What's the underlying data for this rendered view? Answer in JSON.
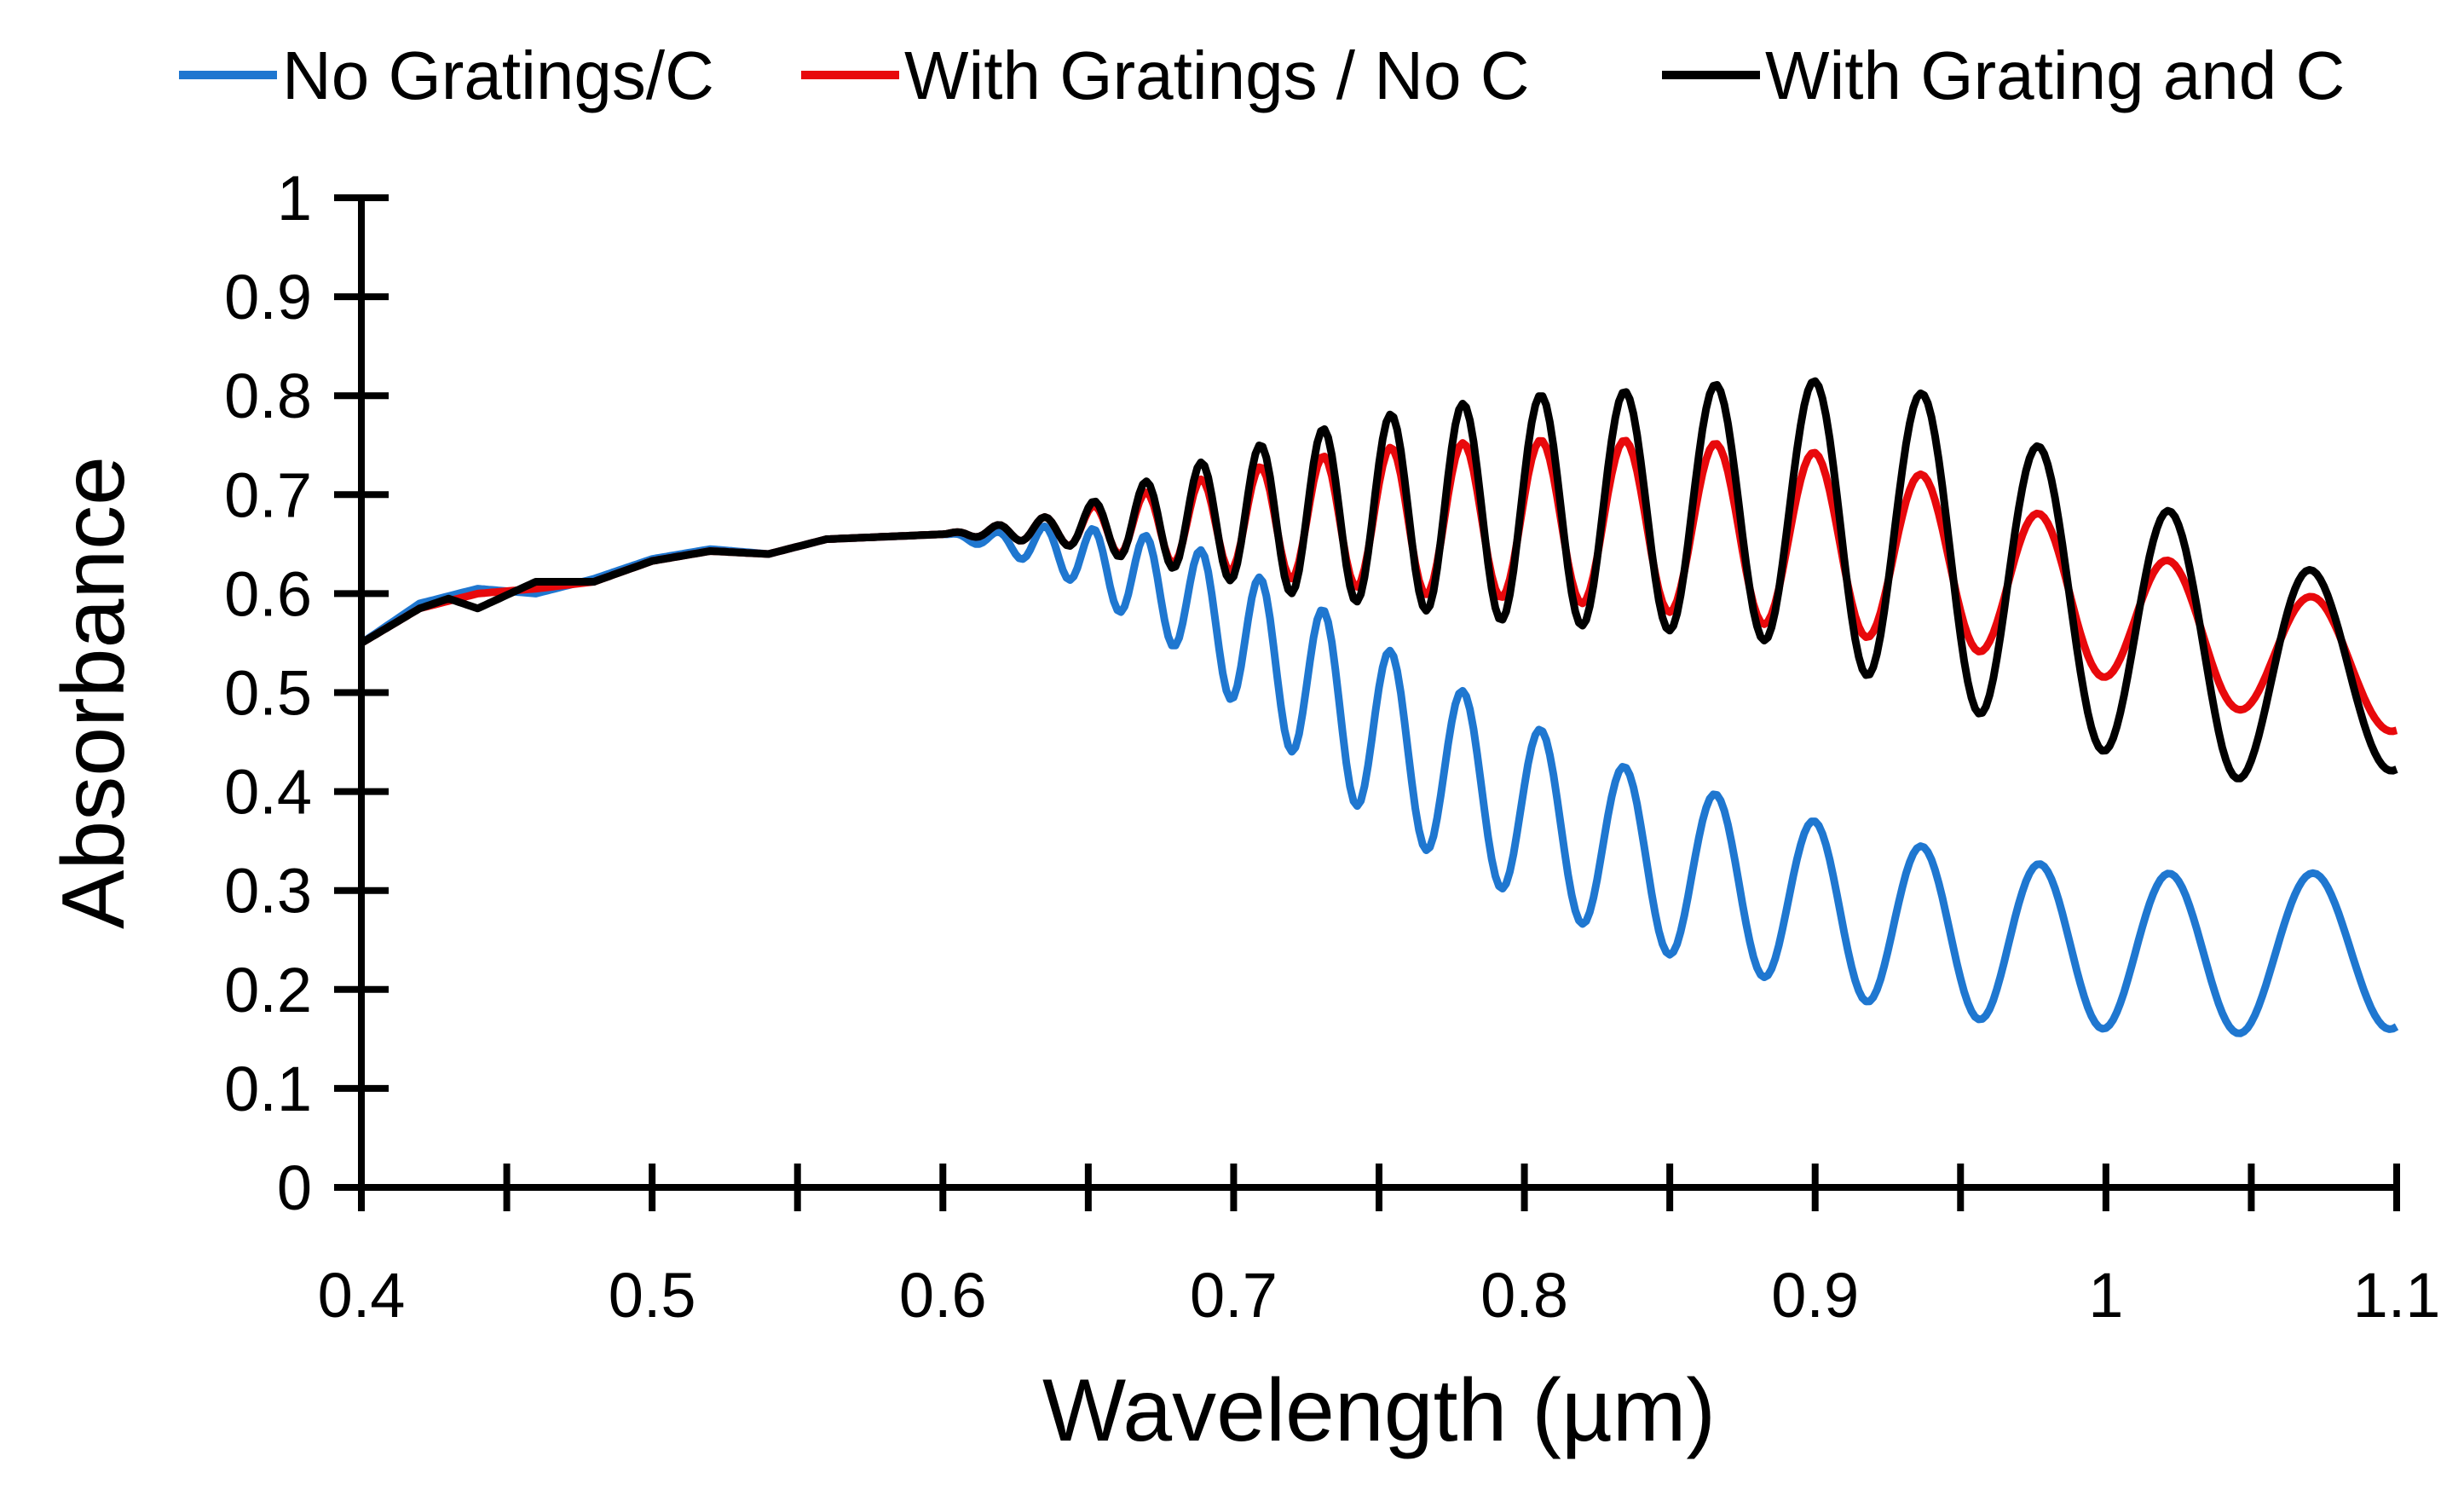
{
  "chart_data": {
    "type": "line",
    "title": "",
    "xlabel": "Wavelength (µm)",
    "ylabel": "Absorbance",
    "xlim": [
      0.4,
      1.1
    ],
    "ylim": [
      0,
      1
    ],
    "x_ticks": [
      0.4,
      0.5,
      0.6,
      0.7,
      0.8,
      0.9,
      1.0,
      1.1
    ],
    "x_tick_labels": [
      "0.4",
      "0.5",
      "0.6",
      "0.7",
      "0.8",
      "0.9",
      "1",
      "1.1"
    ],
    "y_ticks": [
      0,
      0.1,
      0.2,
      0.3,
      0.4,
      0.5,
      0.6,
      0.7,
      0.8,
      0.9,
      1.0
    ],
    "y_tick_labels": [
      "0",
      "0.1",
      "0.2",
      "0.3",
      "0.4",
      "0.5",
      "0.6",
      "0.7",
      "0.8",
      "0.9",
      "1"
    ],
    "grid": false,
    "legend_position": "top",
    "x_sample_step": 0.00125,
    "series": [
      {
        "name": "No Gratings/C",
        "color": "#1f77d0",
        "model": {
          "baseline": [
            [
              0.4,
              0.55
            ],
            [
              0.42,
              0.59
            ],
            [
              0.44,
              0.605
            ],
            [
              0.46,
              0.6
            ],
            [
              0.48,
              0.615
            ],
            [
              0.5,
              0.635
            ],
            [
              0.52,
              0.645
            ],
            [
              0.54,
              0.64
            ],
            [
              0.56,
              0.655
            ],
            [
              0.6,
              0.66
            ],
            [
              0.64,
              0.645
            ],
            [
              0.68,
              0.6
            ],
            [
              0.72,
              0.52
            ],
            [
              0.76,
              0.44
            ],
            [
              0.8,
              0.38
            ],
            [
              0.84,
              0.33
            ],
            [
              0.88,
              0.3
            ],
            [
              0.92,
              0.27
            ],
            [
              0.96,
              0.25
            ],
            [
              1.0,
              0.24
            ],
            [
              1.04,
              0.235
            ],
            [
              1.1,
              0.24
            ]
          ],
          "amplitude": [
            [
              0.4,
              0.0
            ],
            [
              0.6,
              0.0
            ],
            [
              0.62,
              0.01
            ],
            [
              0.66,
              0.04
            ],
            [
              0.7,
              0.07
            ],
            [
              0.74,
              0.09
            ],
            [
              0.8,
              0.09
            ],
            [
              0.9,
              0.085
            ],
            [
              1.0,
              0.08
            ],
            [
              1.1,
              0.08
            ]
          ],
          "phase_start": 0.6,
          "period_coeff": 0.0145,
          "period_exp": 2.2
        }
      },
      {
        "name": "With Gratings / No C",
        "color": "#e8090c",
        "model": {
          "baseline": [
            [
              0.4,
              0.55
            ],
            [
              0.42,
              0.585
            ],
            [
              0.44,
              0.6
            ],
            [
              0.46,
              0.605
            ],
            [
              0.48,
              0.612
            ],
            [
              0.5,
              0.633
            ],
            [
              0.52,
              0.643
            ],
            [
              0.54,
              0.64
            ],
            [
              0.56,
              0.655
            ],
            [
              0.6,
              0.66
            ],
            [
              0.64,
              0.665
            ],
            [
              0.68,
              0.67
            ],
            [
              0.72,
              0.675
            ],
            [
              0.76,
              0.675
            ],
            [
              0.8,
              0.675
            ],
            [
              0.84,
              0.67
            ],
            [
              0.88,
              0.66
            ],
            [
              0.92,
              0.645
            ],
            [
              0.96,
              0.62
            ],
            [
              1.0,
              0.585
            ],
            [
              1.04,
              0.55
            ],
            [
              1.08,
              0.53
            ],
            [
              1.1,
              0.52
            ]
          ],
          "amplitude": [
            [
              0.4,
              0.0
            ],
            [
              0.6,
              0.0
            ],
            [
              0.64,
              0.015
            ],
            [
              0.68,
              0.04
            ],
            [
              0.72,
              0.06
            ],
            [
              0.76,
              0.075
            ],
            [
              0.8,
              0.08
            ],
            [
              0.88,
              0.09
            ],
            [
              0.92,
              0.09
            ],
            [
              0.96,
              0.08
            ],
            [
              1.0,
              0.07
            ],
            [
              1.04,
              0.065
            ],
            [
              1.1,
              0.06
            ]
          ],
          "phase_start": 0.6,
          "period_coeff": 0.0145,
          "period_exp": 2.2
        }
      },
      {
        "name": "With Grating and C",
        "color": "#000000",
        "model": {
          "baseline": [
            [
              0.4,
              0.55
            ],
            [
              0.42,
              0.585
            ],
            [
              0.43,
              0.595
            ],
            [
              0.44,
              0.585
            ],
            [
              0.46,
              0.612
            ],
            [
              0.48,
              0.612
            ],
            [
              0.5,
              0.633
            ],
            [
              0.52,
              0.643
            ],
            [
              0.54,
              0.64
            ],
            [
              0.56,
              0.655
            ],
            [
              0.6,
              0.66
            ],
            [
              0.64,
              0.665
            ],
            [
              0.68,
              0.675
            ],
            [
              0.72,
              0.68
            ],
            [
              0.76,
              0.685
            ],
            [
              0.8,
              0.685
            ],
            [
              0.84,
              0.685
            ],
            [
              0.88,
              0.685
            ],
            [
              0.92,
              0.665
            ],
            [
              0.96,
              0.63
            ],
            [
              1.0,
              0.57
            ],
            [
              1.04,
              0.54
            ],
            [
              1.08,
              0.52
            ],
            [
              1.1,
              0.5
            ]
          ],
          "amplitude": [
            [
              0.4,
              0.0
            ],
            [
              0.6,
              0.0
            ],
            [
              0.64,
              0.015
            ],
            [
              0.68,
              0.05
            ],
            [
              0.72,
              0.08
            ],
            [
              0.76,
              0.1
            ],
            [
              0.8,
              0.115
            ],
            [
              0.84,
              0.12
            ],
            [
              0.88,
              0.13
            ],
            [
              0.92,
              0.15
            ],
            [
              0.96,
              0.155
            ],
            [
              1.0,
              0.13
            ],
            [
              1.04,
              0.13
            ],
            [
              1.08,
              0.09
            ],
            [
              1.1,
              0.08
            ]
          ],
          "phase_start": 0.6,
          "period_coeff": 0.0145,
          "period_exp": 2.2
        }
      }
    ]
  }
}
